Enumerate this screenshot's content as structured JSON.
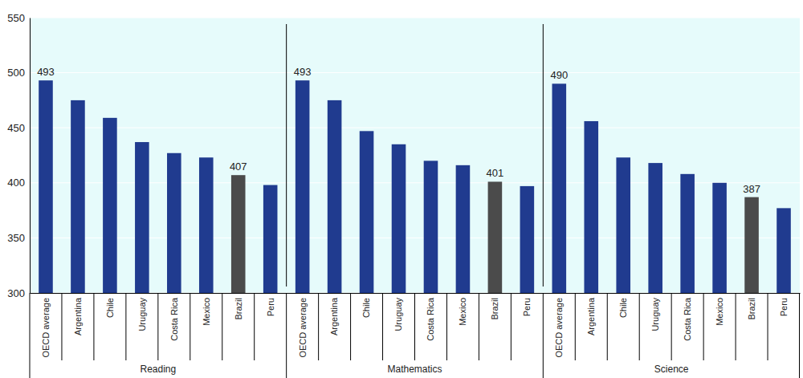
{
  "chart_data": {
    "type": "bar",
    "categories": [
      "OECD average",
      "Argentina",
      "Chile",
      "Uruguay",
      "Costa Rica",
      "Mexico",
      "Brazil",
      "Peru"
    ],
    "series": [
      {
        "name": "Reading",
        "values": [
          493,
          475,
          459,
          437,
          427,
          423,
          407,
          398
        ],
        "value_labels": [
          "493",
          null,
          null,
          null,
          null,
          null,
          "407",
          null
        ]
      },
      {
        "name": "Mathematics",
        "values": [
          493,
          475,
          447,
          435,
          420,
          416,
          401,
          397
        ],
        "value_labels": [
          "493",
          null,
          null,
          null,
          null,
          null,
          "401",
          null
        ]
      },
      {
        "name": "Science",
        "values": [
          490,
          456,
          423,
          418,
          408,
          400,
          387,
          377
        ],
        "value_labels": [
          "490",
          null,
          null,
          null,
          null,
          null,
          "387",
          null
        ]
      }
    ],
    "colors": [
      "#203b8f",
      "#203b8f",
      "#203b8f",
      "#203b8f",
      "#203b8f",
      "#203b8f",
      "#4b4b4b",
      "#203b8f"
    ],
    "ylim": [
      300,
      550
    ],
    "yticks": [
      300,
      350,
      400,
      450,
      500,
      550
    ],
    "grid": true,
    "data_labels": true
  }
}
